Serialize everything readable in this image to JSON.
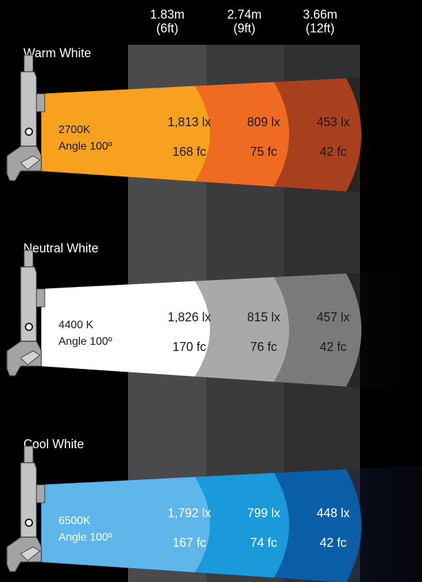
{
  "distances": [
    {
      "meters": "1.83m",
      "feet": "(6ft)"
    },
    {
      "meters": "2.74m",
      "feet": "(9ft)"
    },
    {
      "meters": "3.66m",
      "feet": "(12ft)"
    }
  ],
  "panels": [
    {
      "title": "Warm White",
      "cct": "2700K",
      "angle": "Angle 100º",
      "readings": [
        {
          "lux": "1,813 lx",
          "fc": "168 fc"
        },
        {
          "lux": "809 lx",
          "fc": "75 fc"
        },
        {
          "lux": "453 lx",
          "fc": "42 fc"
        }
      ],
      "colors": [
        "#F7A11F",
        "#F06B22",
        "#A8401E",
        "#5A2410"
      ],
      "text_color": "#1a1a1a"
    },
    {
      "title": "Neutral White",
      "cct": "4400 K",
      "angle": "Angle 100º",
      "readings": [
        {
          "lux": "1,826 lx",
          "fc": "170 fc"
        },
        {
          "lux": "815 lx",
          "fc": "76 fc"
        },
        {
          "lux": "457 lx",
          "fc": "42 fc"
        }
      ],
      "colors": [
        "#FFFFFF",
        "#A9A9AB",
        "#7A7A7C",
        "#59595B"
      ],
      "text_color": "#1a1a1a"
    },
    {
      "title": "Cool White",
      "cct": "6500K",
      "angle": "Angle 100º",
      "readings": [
        {
          "lux": "1,792 lx",
          "fc": "167 fc"
        },
        {
          "lux": "799 lx",
          "fc": "74 fc"
        },
        {
          "lux": "448 lx",
          "fc": "42 fc"
        }
      ],
      "colors": [
        "#5FB6EA",
        "#1A9ADB",
        "#0A5EA8",
        "#0A3F7C"
      ],
      "text_color": "#FFFFFF"
    }
  ]
}
